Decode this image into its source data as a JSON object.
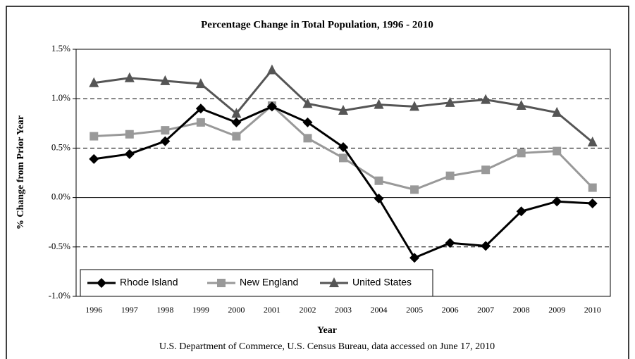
{
  "chart_data": {
    "type": "line",
    "title": "Percentage Change in Total Population, 1996 - 2010",
    "x_label": "Year",
    "y_label": "% Change from Prior Year",
    "source": "U.S. Department of Commerce, U.S. Census Bureau, data accessed on June 17, 2010",
    "categories": [
      "1996",
      "1997",
      "1998",
      "1999",
      "2000",
      "2001",
      "2002",
      "2003",
      "2004",
      "2005",
      "2006",
      "2007",
      "2008",
      "2009",
      "2010"
    ],
    "series": [
      {
        "name": "Rhode Island",
        "color": "#000000",
        "marker": "diamond",
        "values": [
          0.39,
          0.44,
          0.57,
          0.9,
          0.76,
          0.92,
          0.76,
          0.51,
          -0.01,
          -0.61,
          -0.46,
          -0.49,
          -0.14,
          -0.04,
          -0.06
        ]
      },
      {
        "name": "New England",
        "color": "#999999",
        "marker": "square",
        "values": [
          0.62,
          0.64,
          0.68,
          0.76,
          0.62,
          0.93,
          0.6,
          0.4,
          0.17,
          0.08,
          0.22,
          0.28,
          0.45,
          0.47,
          0.1
        ]
      },
      {
        "name": "United States",
        "color": "#555555",
        "marker": "triangle",
        "values": [
          1.16,
          1.21,
          1.18,
          1.15,
          0.85,
          1.29,
          0.95,
          0.88,
          0.94,
          0.92,
          0.96,
          0.99,
          0.93,
          0.86,
          0.56
        ]
      }
    ],
    "ylim": [
      -1.0,
      1.5
    ],
    "yticks": [
      {
        "value": -1.0,
        "label": "-1.0%"
      },
      {
        "value": -0.5,
        "label": "-0.5%"
      },
      {
        "value": 0.0,
        "label": "0.0%"
      },
      {
        "value": 0.5,
        "label": "0.5%"
      },
      {
        "value": 1.0,
        "label": "1.0%"
      },
      {
        "value": 1.5,
        "label": "1.5%"
      }
    ],
    "grid": true,
    "legend": "lower left"
  }
}
